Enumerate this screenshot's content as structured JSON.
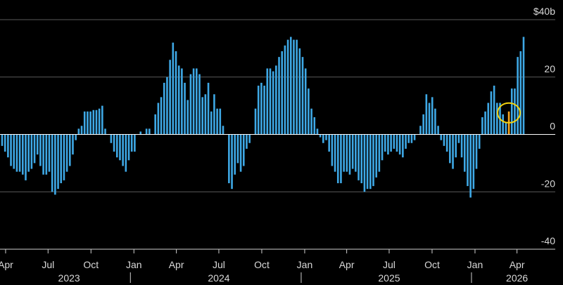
{
  "chart_data": {
    "type": "bar",
    "title": "",
    "xlabel": "",
    "ylabel": "",
    "y_unit_label": "$40b",
    "ylim": [
      -40,
      40
    ],
    "grid": "horizontal",
    "y_ticks": [
      {
        "value": 40,
        "label": "$40b"
      },
      {
        "value": 20,
        "label": "20"
      },
      {
        "value": 0,
        "label": "0"
      },
      {
        "value": -20,
        "label": "-20"
      },
      {
        "value": -40,
        "label": "-40"
      }
    ],
    "x_start": "2023-03-20",
    "x_end": "2026-06-22",
    "x_ticks": [
      {
        "date": "2023-04-01",
        "label": "Apr"
      },
      {
        "date": "2023-07-01",
        "label": "Jul"
      },
      {
        "date": "2023-10-01",
        "label": "Oct"
      },
      {
        "date": "2024-01-01",
        "label": "Jan"
      },
      {
        "date": "2024-04-01",
        "label": "Apr"
      },
      {
        "date": "2024-07-01",
        "label": "Jul"
      },
      {
        "date": "2024-10-01",
        "label": "Oct"
      },
      {
        "date": "2025-01-01",
        "label": "Jan"
      },
      {
        "date": "2025-04-01",
        "label": "Apr"
      },
      {
        "date": "2025-07-01",
        "label": "Jul"
      },
      {
        "date": "2025-10-01",
        "label": "Oct"
      },
      {
        "date": "2026-01-01",
        "label": "Jan"
      },
      {
        "date": "2026-04-01",
        "label": "Apr"
      }
    ],
    "year_labels": [
      {
        "label": "2023",
        "center": "2023-08-15"
      },
      {
        "label": "2024",
        "center": "2024-07-01"
      },
      {
        "label": "2025",
        "center": "2025-07-01"
      },
      {
        "label": "2026",
        "center": "2026-04-01"
      }
    ],
    "year_dividers": [
      "2024-01-01",
      "2025-01-01",
      "2026-01-01"
    ],
    "colors": {
      "bar": "#3ea8e5",
      "highlight": "#f5a623",
      "circle": "#f2d20f",
      "grid": "#5a5a5a",
      "zero_line": "#ffffff",
      "background": "#000000"
    },
    "series": [
      {
        "values": [
          -4,
          -6,
          -8,
          -11,
          -12,
          -13,
          -13,
          -14,
          -16,
          -13,
          -12,
          -10,
          -7,
          -11,
          -14,
          -14,
          -13,
          -20,
          -21,
          -19,
          -17,
          -16,
          -13,
          -11,
          -7,
          -2,
          2,
          3,
          8,
          8,
          8,
          8.5,
          8.5,
          9,
          10,
          2,
          0,
          -3,
          -6,
          -8,
          -9,
          -11,
          -13,
          -9,
          -6,
          -6,
          0,
          1,
          0,
          2,
          2,
          0,
          7,
          11,
          13,
          18,
          20,
          26,
          32,
          29,
          24,
          23,
          18,
          12,
          21,
          23,
          23,
          21,
          13,
          14,
          18,
          8,
          14,
          9,
          9,
          3,
          0,
          -17,
          -19,
          -14,
          -10,
          -13,
          -11,
          -5,
          -3,
          0,
          9,
          17,
          18,
          17,
          23,
          23,
          22,
          24,
          27,
          29,
          31,
          33,
          34,
          33,
          33,
          30,
          27,
          23,
          16,
          9,
          6,
          2,
          -1,
          -3,
          -2,
          -6,
          -11,
          -13,
          -17,
          -17,
          -13,
          -13,
          -14,
          -12,
          -13,
          -16,
          -17,
          -20,
          -19,
          -19,
          -18,
          -15,
          -13,
          -9,
          -6,
          -7,
          -6,
          -5,
          -6,
          -7,
          -8,
          -5,
          -3,
          -3,
          -2,
          0,
          3,
          7,
          14,
          11,
          13,
          9,
          3,
          -2,
          -4,
          -6,
          -10,
          -12,
          -8,
          -3,
          -8,
          -13,
          -18,
          -22,
          -19,
          -12,
          -5,
          6,
          8,
          11,
          15,
          17,
          11,
          11,
          7,
          4,
          8,
          16,
          16,
          27,
          29,
          34
        ]
      }
    ],
    "highlight_index": 172
  }
}
